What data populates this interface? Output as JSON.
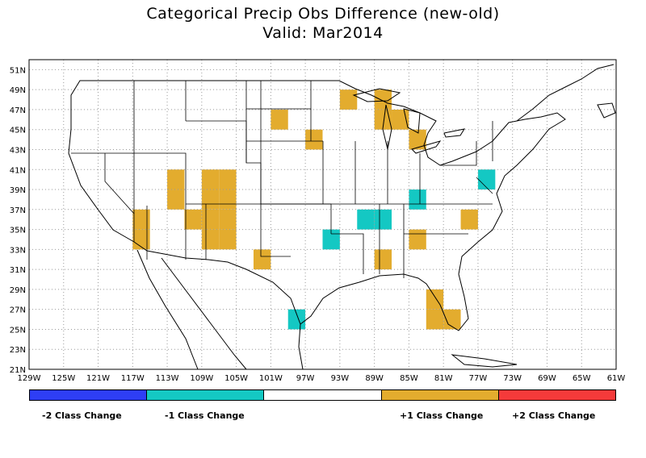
{
  "title": "Categorical Precip Obs Difference (new-old)",
  "subtitle": "Valid: Mar2014",
  "colors": {
    "minus2": "#2e3ef5",
    "minus1": "#14c8c3",
    "zero": "#ffffff",
    "plus1": "#e3ac2e",
    "plus2": "#f53a3a",
    "grid": "#999999",
    "line": "#000000"
  },
  "axes": {
    "lon_range": [
      -129,
      -61
    ],
    "lat_range": [
      21,
      52
    ],
    "lon_ticks": [
      "129W",
      "125W",
      "121W",
      "117W",
      "113W",
      "109W",
      "105W",
      "101W",
      "97W",
      "93W",
      "89W",
      "85W",
      "81W",
      "77W",
      "73W",
      "69W",
      "65W",
      "61W"
    ],
    "lat_ticks": [
      "21N",
      "23N",
      "25N",
      "27N",
      "29N",
      "31N",
      "33N",
      "35N",
      "37N",
      "39N",
      "41N",
      "43N",
      "45N",
      "47N",
      "49N",
      "51N"
    ]
  },
  "legend": [
    {
      "label": "-2 Class Change",
      "color": "#2e3ef5"
    },
    {
      "label": "-1 Class Change",
      "color": "#14c8c3"
    },
    {
      "label": "",
      "color": "#ffffff"
    },
    {
      "label": "+1 Class Change",
      "color": "#e3ac2e"
    },
    {
      "label": "+2 Class Change",
      "color": "#f53a3a"
    }
  ],
  "cells": [
    {
      "lon": -101,
      "lat": 45,
      "change": 1
    },
    {
      "lon": -97,
      "lat": 43,
      "change": 1
    },
    {
      "lon": -93,
      "lat": 47,
      "change": 1
    },
    {
      "lon": -89,
      "lat": 47,
      "change": 1
    },
    {
      "lon": -89,
      "lat": 45,
      "change": 1
    },
    {
      "lon": -87,
      "lat": 45,
      "change": 1
    },
    {
      "lon": -85,
      "lat": 43,
      "change": 1
    },
    {
      "lon": -113,
      "lat": 39,
      "change": 1
    },
    {
      "lon": -113,
      "lat": 37,
      "change": 1
    },
    {
      "lon": -109,
      "lat": 39,
      "change": 1
    },
    {
      "lon": -107,
      "lat": 39,
      "change": 1
    },
    {
      "lon": -109,
      "lat": 37,
      "change": 1
    },
    {
      "lon": -107,
      "lat": 37,
      "change": 1
    },
    {
      "lon": -111,
      "lat": 35,
      "change": 1
    },
    {
      "lon": -109,
      "lat": 35,
      "change": 1
    },
    {
      "lon": -107,
      "lat": 35,
      "change": 1
    },
    {
      "lon": -107,
      "lat": 33,
      "change": 1
    },
    {
      "lon": -109,
      "lat": 33,
      "change": 1
    },
    {
      "lon": -117,
      "lat": 35,
      "change": 1
    },
    {
      "lon": -117,
      "lat": 33,
      "change": 1
    },
    {
      "lon": -103,
      "lat": 31,
      "change": 1
    },
    {
      "lon": -79,
      "lat": 35,
      "change": 1
    },
    {
      "lon": -85,
      "lat": 33,
      "change": 1
    },
    {
      "lon": -89,
      "lat": 31,
      "change": 1
    },
    {
      "lon": -83,
      "lat": 27,
      "change": 1
    },
    {
      "lon": -83,
      "lat": 25,
      "change": 1
    },
    {
      "lon": -81,
      "lat": 25,
      "change": 1
    },
    {
      "lon": -77,
      "lat": 39,
      "change": -1
    },
    {
      "lon": -85,
      "lat": 37,
      "change": -1
    },
    {
      "lon": -91,
      "lat": 35,
      "change": -1
    },
    {
      "lon": -89,
      "lat": 35,
      "change": -1
    },
    {
      "lon": -95,
      "lat": 33,
      "change": -1
    },
    {
      "lon": -99,
      "lat": 25,
      "change": -1
    }
  ]
}
